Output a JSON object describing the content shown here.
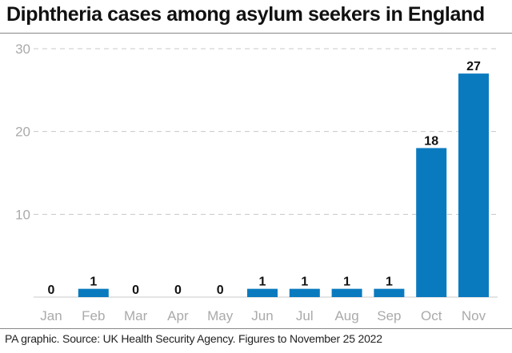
{
  "title": "Diphtheria cases among asylum seekers in England",
  "source": "PA graphic. Source: UK Health Security Agency. Figures to November 25 2022",
  "colors": {
    "bar": "#0a7abf",
    "grid": "#c8c8c8",
    "axis_text": "#aaaaaa",
    "label": "#111111"
  },
  "chart_data": {
    "type": "bar",
    "title": "Diphtheria cases among asylum seekers in England",
    "xlabel": "",
    "ylabel": "",
    "categories": [
      "Jan",
      "Feb",
      "Mar",
      "Apr",
      "May",
      "Jun",
      "Jul",
      "Aug",
      "Sep",
      "Oct",
      "Nov"
    ],
    "values": [
      0,
      1,
      0,
      0,
      0,
      1,
      1,
      1,
      1,
      18,
      27
    ],
    "data_labels": [
      "0",
      "1",
      "0",
      "0",
      "0",
      "1",
      "1",
      "1",
      "1",
      "18",
      "27"
    ],
    "ylim": [
      0,
      30
    ],
    "yticks": [
      10,
      20,
      30
    ],
    "ytick_labels": [
      "10",
      "20",
      "30"
    ],
    "grid": true,
    "legend": "none"
  }
}
